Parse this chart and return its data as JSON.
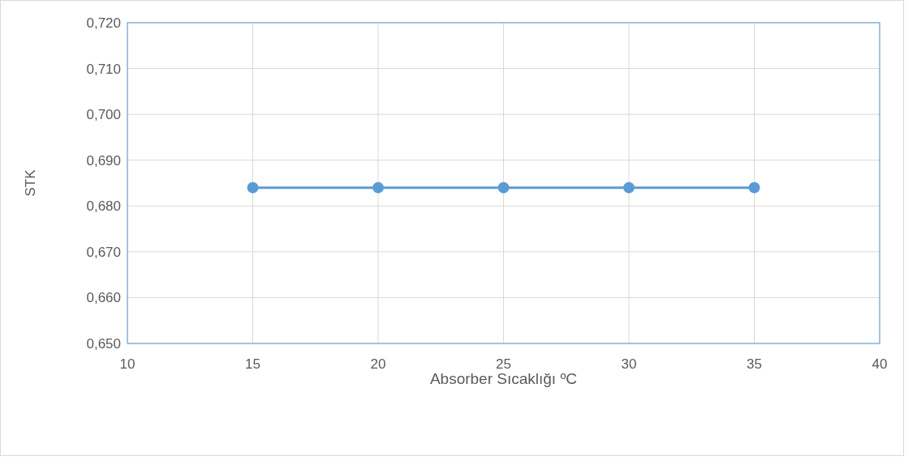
{
  "chart_data": {
    "type": "line",
    "xlabel": "Absorber Sıcaklığı ºC",
    "ylabel": "STK",
    "x": [
      15,
      20,
      25,
      30,
      35
    ],
    "series": [
      {
        "color": "#5b9bd5",
        "values": [
          0.684,
          0.684,
          0.684,
          0.684,
          0.684
        ]
      }
    ],
    "xlim": [
      10,
      40
    ],
    "xticks": [
      10,
      15,
      20,
      25,
      30,
      35,
      40
    ],
    "ylim": [
      0.65,
      0.72
    ],
    "yticks": [
      {
        "value": 0.65,
        "label": "0,650"
      },
      {
        "value": 0.66,
        "label": "0,660"
      },
      {
        "value": 0.67,
        "label": "0,670"
      },
      {
        "value": 0.68,
        "label": "0,680"
      },
      {
        "value": 0.69,
        "label": "0,690"
      },
      {
        "value": 0.7,
        "label": "0,700"
      },
      {
        "value": 0.71,
        "label": "0,710"
      },
      {
        "value": 0.72,
        "label": "0,720"
      }
    ],
    "grid": true,
    "marker": "circle",
    "line_style": "solid"
  }
}
